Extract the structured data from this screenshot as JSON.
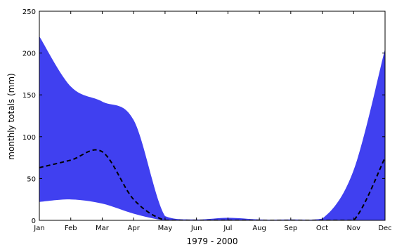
{
  "chart_data": {
    "type": "area",
    "title": "",
    "xlabel": "1979 - 2000",
    "ylabel": "monthly totals (mm)",
    "categories": [
      "Jan",
      "Feb",
      "Mar",
      "Apr",
      "May",
      "Jun",
      "Jul",
      "Aug",
      "Sep",
      "Oct",
      "Nov",
      "Dec"
    ],
    "ylim": [
      0,
      250
    ],
    "yticks": [
      0,
      50,
      100,
      150,
      200,
      250
    ],
    "grid": false,
    "legend": "none",
    "band": {
      "upper": [
        220,
        160,
        142,
        120,
        5,
        1,
        3,
        1,
        1,
        2,
        60,
        205
      ],
      "lower": [
        22,
        25,
        20,
        8,
        0,
        0,
        0,
        0,
        0,
        0,
        0,
        0
      ],
      "color": "#4040f0"
    },
    "line": {
      "style": "dashed",
      "color": "#000000",
      "values": [
        63,
        72,
        82,
        25,
        0,
        0,
        0,
        0,
        0,
        0,
        0,
        75
      ]
    }
  }
}
